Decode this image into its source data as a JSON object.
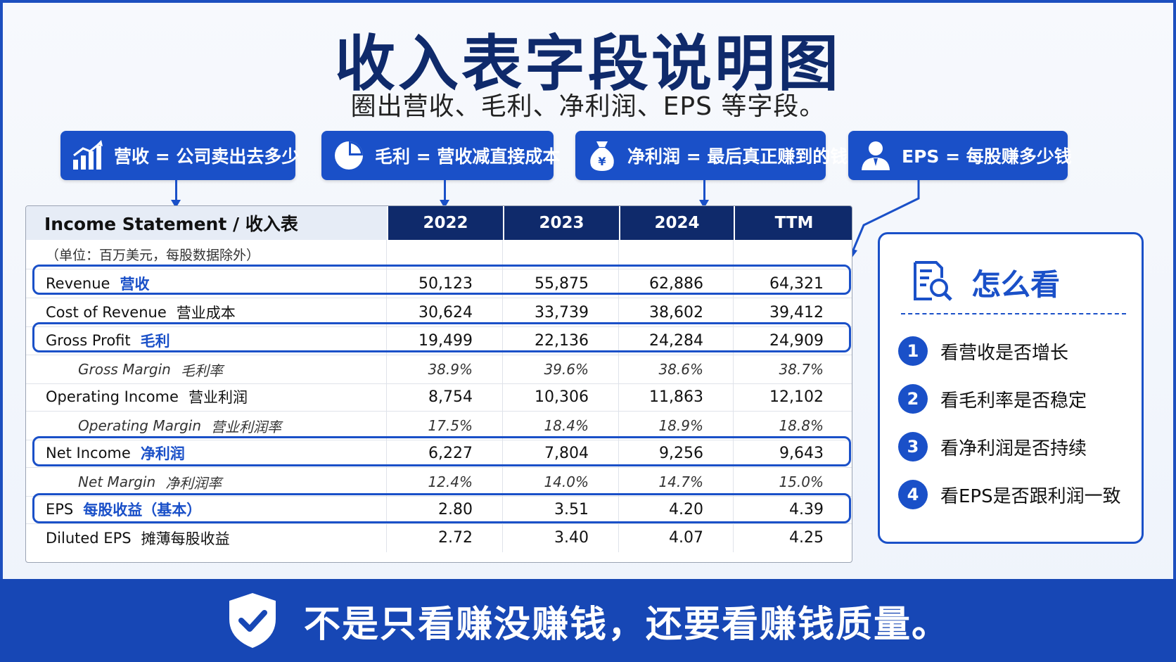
{
  "title": "收入表字段说明图",
  "subtitle": "圈出营收、毛利、净利润、EPS 等字段。",
  "callouts": [
    {
      "icon": "bar-chart-icon",
      "text": "营收 = 公司卖出去多少"
    },
    {
      "icon": "pie-chart-icon",
      "text": "毛利 = 营收减直接成本"
    },
    {
      "icon": "money-bag-icon",
      "text": "净利润 = 最后真正赚到的钱"
    },
    {
      "icon": "person-icon",
      "text": "EPS = 每股赚多少钱"
    }
  ],
  "table": {
    "header": "Income Statement / 收入表",
    "years": [
      "2022",
      "2023",
      "2024",
      "TTM"
    ],
    "unit_note": "（单位：百万美元，每股数据除外）",
    "rows": [
      {
        "en": "Revenue",
        "cn": "营收",
        "values": [
          "50,123",
          "55,875",
          "62,886",
          "64,321"
        ],
        "highlight": true,
        "sub": false
      },
      {
        "en": "Cost of Revenue",
        "cn": "营业成本",
        "values": [
          "30,624",
          "33,739",
          "38,602",
          "39,412"
        ],
        "highlight": false,
        "sub": false
      },
      {
        "en": "Gross Profit",
        "cn": "毛利",
        "values": [
          "19,499",
          "22,136",
          "24,284",
          "24,909"
        ],
        "highlight": true,
        "sub": false
      },
      {
        "en": "Gross Margin",
        "cn": "毛利率",
        "values": [
          "38.9%",
          "39.6%",
          "38.6%",
          "38.7%"
        ],
        "highlight": false,
        "sub": true
      },
      {
        "en": "Operating Income",
        "cn": "营业利润",
        "values": [
          "8,754",
          "10,306",
          "11,863",
          "12,102"
        ],
        "highlight": false,
        "sub": false
      },
      {
        "en": "Operating Margin",
        "cn": "营业利润率",
        "values": [
          "17.5%",
          "18.4%",
          "18.9%",
          "18.8%"
        ],
        "highlight": false,
        "sub": true
      },
      {
        "en": "Net Income",
        "cn": "净利润",
        "values": [
          "6,227",
          "7,804",
          "9,256",
          "9,643"
        ],
        "highlight": true,
        "sub": false
      },
      {
        "en": "Net Margin",
        "cn": "净利润率",
        "values": [
          "12.4%",
          "14.0%",
          "14.7%",
          "15.0%"
        ],
        "highlight": false,
        "sub": true
      },
      {
        "en": "EPS",
        "cn": "每股收益（基本）",
        "values": [
          "2.80",
          "3.51",
          "4.20",
          "4.39"
        ],
        "highlight": true,
        "sub": false
      },
      {
        "en": "Diluted EPS",
        "cn": "摊薄每股收益",
        "values": [
          "2.72",
          "3.40",
          "4.07",
          "4.25"
        ],
        "highlight": false,
        "sub": false
      }
    ]
  },
  "panel": {
    "title": "怎么看",
    "icon": "document-search-icon",
    "tips": [
      "看营收是否增长",
      "看毛利率是否稳定",
      "看净利润是否持续",
      "看EPS是否跟利润一致"
    ]
  },
  "banner": {
    "icon": "shield-check-icon",
    "text": "不是只看赚没赚钱，还要看赚钱质量。"
  },
  "colors": {
    "primary": "#1a50c8",
    "navy": "#0f2a6b",
    "banner": "#1747b5"
  }
}
